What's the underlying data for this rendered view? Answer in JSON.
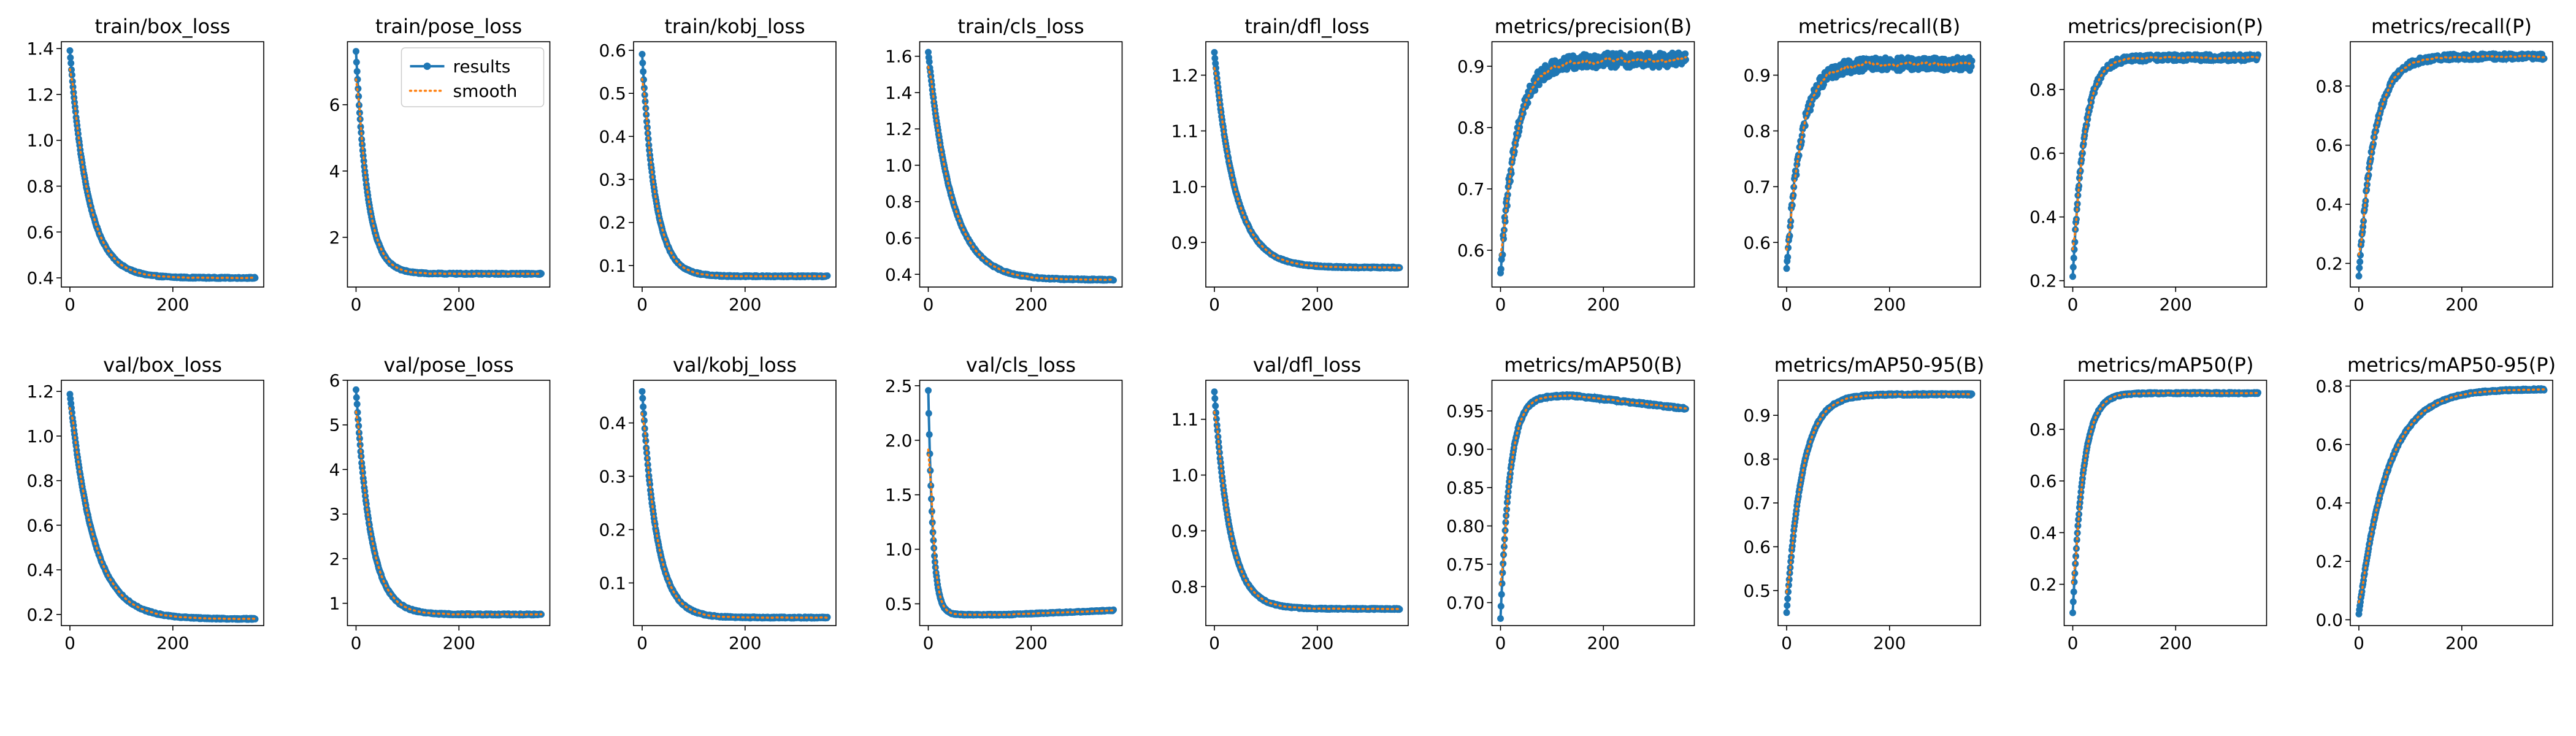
{
  "figure": {
    "legend": {
      "results_label": "results",
      "smooth_label": "smooth",
      "placement": "upper-right",
      "panel": "train/pose_loss"
    },
    "colors": {
      "results": "#1f77b4",
      "smooth": "#ff7f0e"
    },
    "x_range": [
      0,
      360
    ],
    "x_ticks": [
      0,
      200
    ]
  },
  "chart_data": [
    {
      "type": "line",
      "title": "train/box_loss",
      "ylim": [
        0.36,
        1.43
      ],
      "yticks": [
        0.4,
        0.6,
        0.8,
        1.0,
        1.2,
        1.4
      ],
      "ytick_labels": [
        "0.4",
        "0.6",
        "0.8",
        "1.0",
        "1.2",
        "1.4"
      ],
      "shape": "decay",
      "start": 1.39,
      "end": 0.4,
      "tau": 35
    },
    {
      "type": "line",
      "title": "train/pose_loss",
      "ylim": [
        0.5,
        7.9
      ],
      "yticks": [
        2,
        4,
        6
      ],
      "ytick_labels": [
        "2",
        "4",
        "6"
      ],
      "shape": "decay",
      "start": 7.6,
      "end": 0.9,
      "tau": 22
    },
    {
      "type": "line",
      "title": "train/kobj_loss",
      "ylim": [
        0.05,
        0.62
      ],
      "yticks": [
        0.1,
        0.2,
        0.3,
        0.4,
        0.5,
        0.6
      ],
      "ytick_labels": [
        "0.1",
        "0.2",
        "0.3",
        "0.4",
        "0.5",
        "0.6"
      ],
      "shape": "decay",
      "start": 0.59,
      "end": 0.075,
      "tau": 25
    },
    {
      "type": "line",
      "title": "train/cls_loss",
      "ylim": [
        0.33,
        1.68
      ],
      "yticks": [
        0.4,
        0.6,
        0.8,
        1.0,
        1.2,
        1.4,
        1.6
      ],
      "ytick_labels": [
        "0.4",
        "0.6",
        "0.8",
        "1.0",
        "1.2",
        "1.4",
        "1.6"
      ],
      "shape": "decay",
      "start": 1.62,
      "end": 0.37,
      "tau": 45
    },
    {
      "type": "line",
      "title": "train/dfl_loss",
      "ylim": [
        0.82,
        1.26
      ],
      "yticks": [
        0.9,
        1.0,
        1.1,
        1.2
      ],
      "ytick_labels": [
        "0.9",
        "1.0",
        "1.1",
        "1.2"
      ],
      "shape": "decay",
      "start": 1.24,
      "end": 0.855,
      "tau": 40
    },
    {
      "type": "line",
      "title": "metrics/precision(B)",
      "ylim": [
        0.54,
        0.94
      ],
      "yticks": [
        0.6,
        0.7,
        0.8,
        0.9
      ],
      "ytick_labels": [
        "0.6",
        "0.7",
        "0.8",
        "0.9"
      ],
      "shape": "rise",
      "start": 0.56,
      "end": 0.91,
      "tau": 30,
      "noise": 0.012
    },
    {
      "type": "line",
      "title": "metrics/recall(B)",
      "ylim": [
        0.52,
        0.96
      ],
      "yticks": [
        0.6,
        0.7,
        0.8,
        0.9
      ],
      "ytick_labels": [
        "0.6",
        "0.7",
        "0.8",
        "0.9"
      ],
      "shape": "rise",
      "start": 0.55,
      "end": 0.92,
      "tau": 28,
      "noise": 0.012
    },
    {
      "type": "line",
      "title": "metrics/precision(P)",
      "ylim": [
        0.18,
        0.95
      ],
      "yticks": [
        0.2,
        0.4,
        0.6,
        0.8
      ],
      "ytick_labels": [
        "0.2",
        "0.4",
        "0.6",
        "0.8"
      ],
      "shape": "rise",
      "start": 0.21,
      "end": 0.9,
      "tau": 22,
      "noise": 0.01
    },
    {
      "type": "line",
      "title": "metrics/recall(P)",
      "ylim": [
        0.12,
        0.95
      ],
      "yticks": [
        0.2,
        0.4,
        0.6,
        0.8
      ],
      "ytick_labels": [
        "0.2",
        "0.4",
        "0.6",
        "0.8"
      ],
      "shape": "rise",
      "start": 0.16,
      "end": 0.9,
      "tau": 30,
      "noise": 0.01
    },
    {
      "type": "line",
      "title": "val/box_loss",
      "ylim": [
        0.15,
        1.25
      ],
      "yticks": [
        0.2,
        0.4,
        0.6,
        0.8,
        1.0,
        1.2
      ],
      "ytick_labels": [
        "0.2",
        "0.4",
        "0.6",
        "0.8",
        "1.0",
        "1.2"
      ],
      "shape": "decay",
      "start": 1.19,
      "end": 0.18,
      "tau": 45
    },
    {
      "type": "line",
      "title": "val/pose_loss",
      "ylim": [
        0.5,
        6.0
      ],
      "yticks": [
        1,
        2,
        3,
        4,
        5,
        6
      ],
      "ytick_labels": [
        "1",
        "2",
        "3",
        "4",
        "5",
        "6"
      ],
      "shape": "decay",
      "start": 5.8,
      "end": 0.75,
      "tau": 28
    },
    {
      "type": "line",
      "title": "val/kobj_loss",
      "ylim": [
        0.02,
        0.48
      ],
      "yticks": [
        0.1,
        0.2,
        0.3,
        0.4
      ],
      "ytick_labels": [
        "0.1",
        "0.2",
        "0.3",
        "0.4"
      ],
      "shape": "decay",
      "start": 0.46,
      "end": 0.035,
      "tau": 28
    },
    {
      "type": "line",
      "title": "val/cls_loss",
      "ylim": [
        0.3,
        2.55
      ],
      "yticks": [
        0.5,
        1.0,
        1.5,
        2.0,
        2.5
      ],
      "ytick_labels": [
        "0.5",
        "1.0",
        "1.5",
        "2.0",
        "2.5"
      ],
      "shape": "dip",
      "start": 2.46,
      "end": 0.44,
      "tau": 9,
      "dipmin": 0.4,
      "dipx": 150
    },
    {
      "type": "line",
      "title": "val/dfl_loss",
      "ylim": [
        0.73,
        1.17
      ],
      "yticks": [
        0.8,
        0.9,
        1.0,
        1.1
      ],
      "ytick_labels": [
        "0.8",
        "0.9",
        "1.0",
        "1.1"
      ],
      "shape": "decay",
      "start": 1.15,
      "end": 0.76,
      "tau": 30
    },
    {
      "type": "line",
      "title": "metrics/mAP50(B)",
      "ylim": [
        0.67,
        0.99
      ],
      "yticks": [
        0.7,
        0.75,
        0.8,
        0.85,
        0.9,
        0.95
      ],
      "ytick_labels": [
        "0.70",
        "0.75",
        "0.80",
        "0.85",
        "0.90",
        "0.95"
      ],
      "shape": "peak",
      "start": 0.68,
      "end": 0.97,
      "tau": 18,
      "peakx": 140,
      "final": 0.953
    },
    {
      "type": "line",
      "title": "metrics/mAP50-95(B)",
      "ylim": [
        0.42,
        0.98
      ],
      "yticks": [
        0.5,
        0.6,
        0.7,
        0.8,
        0.9
      ],
      "ytick_labels": [
        "0.5",
        "0.6",
        "0.7",
        "0.8",
        "0.9"
      ],
      "shape": "rise",
      "start": 0.45,
      "end": 0.948,
      "tau": 30,
      "noise": 0.002
    },
    {
      "type": "line",
      "title": "metrics/mAP50(P)",
      "ylim": [
        0.04,
        0.99
      ],
      "yticks": [
        0.2,
        0.4,
        0.6,
        0.8
      ],
      "ytick_labels": [
        "0.2",
        "0.4",
        "0.6",
        "0.8"
      ],
      "shape": "rise",
      "start": 0.09,
      "end": 0.94,
      "tau": 20,
      "noise": 0.003
    },
    {
      "type": "line",
      "title": "metrics/mAP50-95(P)",
      "ylim": [
        -0.02,
        0.82
      ],
      "yticks": [
        0.0,
        0.2,
        0.4,
        0.6,
        0.8
      ],
      "ytick_labels": [
        "0.0",
        "0.2",
        "0.4",
        "0.6",
        "0.8"
      ],
      "shape": "rise",
      "start": 0.02,
      "end": 0.79,
      "tau": 55,
      "noise": 0.003
    }
  ]
}
